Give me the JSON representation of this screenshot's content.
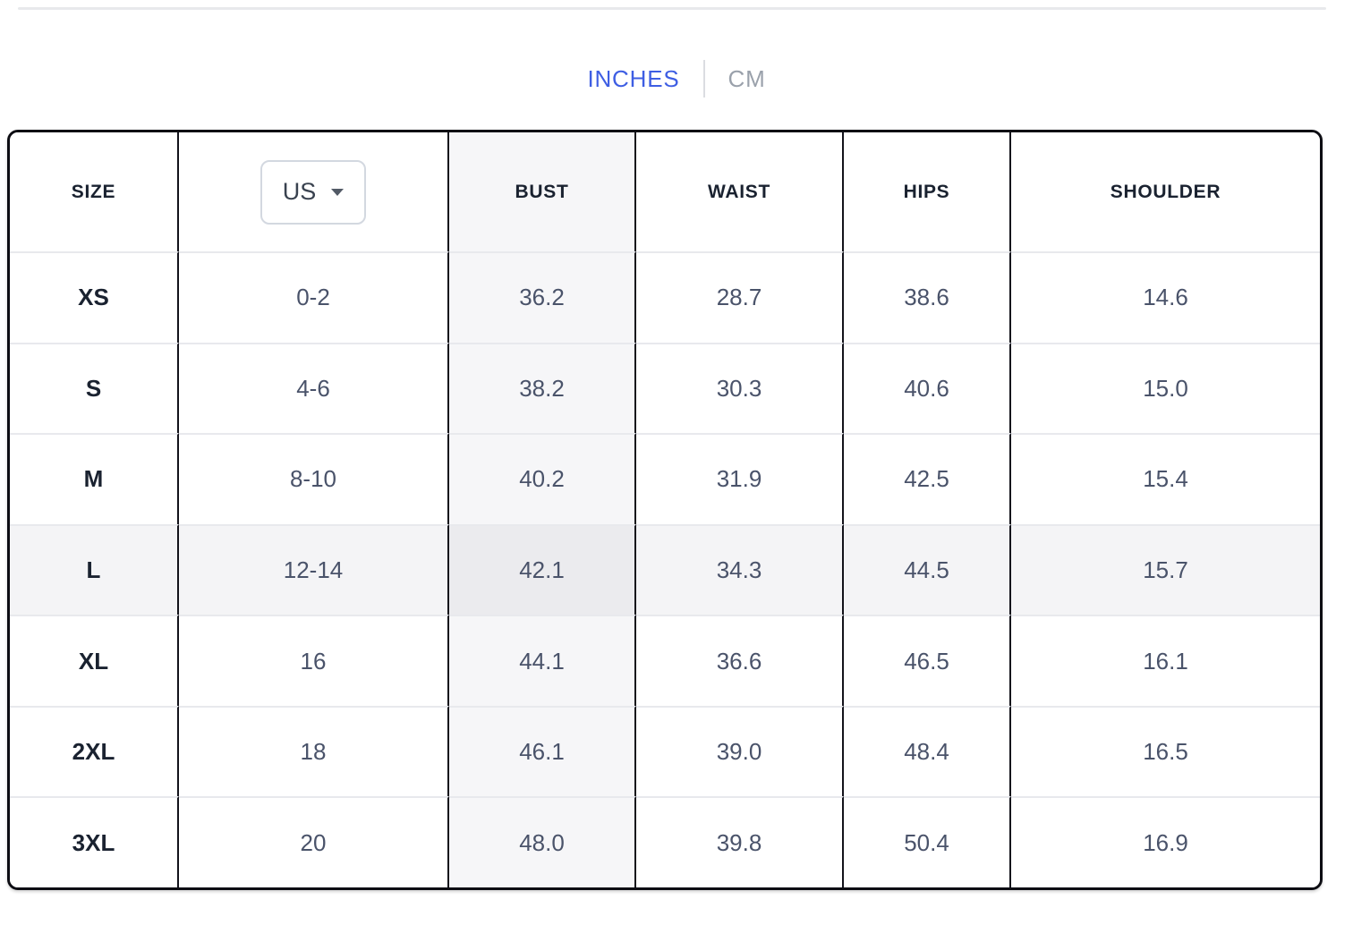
{
  "unit_toggle": {
    "inches_label": "INCHES",
    "cm_label": "CM",
    "selected": "INCHES"
  },
  "table": {
    "header": {
      "size": "SIZE",
      "bust": "BUST",
      "waist": "WAIST",
      "hips": "HIPS",
      "shoulder": "SHOULDER"
    },
    "size_system": {
      "selected": "US"
    },
    "highlighted_column": "BUST",
    "highlighted_row": "L",
    "rows": [
      {
        "size": "XS",
        "us": "0-2",
        "bust": "36.2",
        "waist": "28.7",
        "hips": "38.6",
        "shoulder": "14.6"
      },
      {
        "size": "S",
        "us": "4-6",
        "bust": "38.2",
        "waist": "30.3",
        "hips": "40.6",
        "shoulder": "15.0"
      },
      {
        "size": "M",
        "us": "8-10",
        "bust": "40.2",
        "waist": "31.9",
        "hips": "42.5",
        "shoulder": "15.4"
      },
      {
        "size": "L",
        "us": "12-14",
        "bust": "42.1",
        "waist": "34.3",
        "hips": "44.5",
        "shoulder": "15.7"
      },
      {
        "size": "XL",
        "us": "16",
        "bust": "44.1",
        "waist": "36.6",
        "hips": "46.5",
        "shoulder": "16.1"
      },
      {
        "size": "2XL",
        "us": "18",
        "bust": "46.1",
        "waist": "39.0",
        "hips": "48.4",
        "shoulder": "16.5"
      },
      {
        "size": "3XL",
        "us": "20",
        "bust": "48.0",
        "waist": "39.8",
        "hips": "50.4",
        "shoulder": "16.9"
      }
    ]
  },
  "colors": {
    "accent_blue": "#3e5ee3",
    "inactive_gray": "#9aa1ab",
    "table_border": "#0d0d13",
    "row_divider": "#e8e9ed",
    "column_highlight": "#f6f6f8",
    "row_highlight": "#f4f4f6",
    "highlight_intersection": "#ebebee",
    "header_text": "#1a2230",
    "data_text": "#4a536a"
  }
}
